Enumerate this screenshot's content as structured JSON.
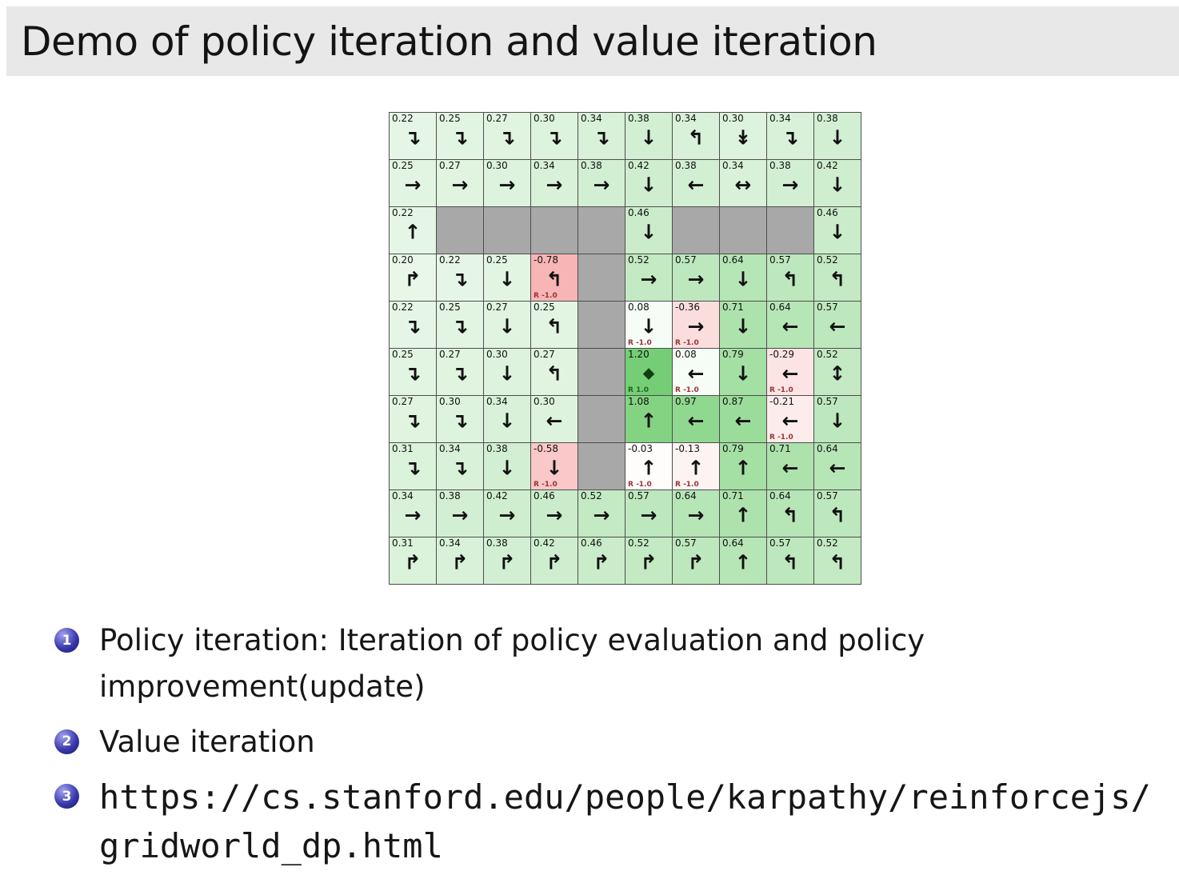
{
  "title": "Demo of policy iteration and value iteration",
  "colors": {
    "title_bar_bg": "#e8e8e8",
    "wall_gray": "#a8a8a8",
    "positive_value_green": "#00a500",
    "negative_value_red": "#eb1e1e",
    "reward_negative_text": "#993333",
    "reward_positive_text": "#1a6b1a",
    "enumerate_badge_blue": "#3a3aae"
  },
  "grid": {
    "rows": 10,
    "cols": 10,
    "legend": "gridworld value-function / policy visualization; v = state value, a = greedy policy arrow, r = reward label, w = wall, g = goal",
    "cells": [
      [
        {
          "v": "0.22",
          "a": "↴"
        },
        {
          "v": "0.25",
          "a": "↴"
        },
        {
          "v": "0.27",
          "a": "↴"
        },
        {
          "v": "0.30",
          "a": "↴"
        },
        {
          "v": "0.34",
          "a": "↴"
        },
        {
          "v": "0.38",
          "a": "↓"
        },
        {
          "v": "0.34",
          "a": "↰"
        },
        {
          "v": "0.30",
          "a": "↡"
        },
        {
          "v": "0.34",
          "a": "↴"
        },
        {
          "v": "0.38",
          "a": "↓"
        }
      ],
      [
        {
          "v": "0.25",
          "a": "→"
        },
        {
          "v": "0.27",
          "a": "→"
        },
        {
          "v": "0.30",
          "a": "→"
        },
        {
          "v": "0.34",
          "a": "→"
        },
        {
          "v": "0.38",
          "a": "→"
        },
        {
          "v": "0.42",
          "a": "↓"
        },
        {
          "v": "0.38",
          "a": "←"
        },
        {
          "v": "0.34",
          "a": "↔"
        },
        {
          "v": "0.38",
          "a": "→"
        },
        {
          "v": "0.42",
          "a": "↓"
        }
      ],
      [
        {
          "v": "0.22",
          "a": "↑"
        },
        {
          "w": 1
        },
        {
          "w": 1
        },
        {
          "w": 1
        },
        {
          "w": 1
        },
        {
          "v": "0.46",
          "a": "↓"
        },
        {
          "w": 1
        },
        {
          "w": 1
        },
        {
          "w": 1
        },
        {
          "v": "0.46",
          "a": "↓"
        }
      ],
      [
        {
          "v": "0.20",
          "a": "↱"
        },
        {
          "v": "0.22",
          "a": "↴"
        },
        {
          "v": "0.25",
          "a": "↓"
        },
        {
          "v": "-0.78",
          "a": "↰",
          "r": "R -1.0"
        },
        {
          "w": 1
        },
        {
          "v": "0.52",
          "a": "→"
        },
        {
          "v": "0.57",
          "a": "→"
        },
        {
          "v": "0.64",
          "a": "↓"
        },
        {
          "v": "0.57",
          "a": "↰"
        },
        {
          "v": "0.52",
          "a": "↰"
        }
      ],
      [
        {
          "v": "0.22",
          "a": "↴"
        },
        {
          "v": "0.25",
          "a": "↴"
        },
        {
          "v": "0.27",
          "a": "↓"
        },
        {
          "v": "0.25",
          "a": "↰"
        },
        {
          "w": 1
        },
        {
          "v": "0.08",
          "a": "↓",
          "r": "R -1.0"
        },
        {
          "v": "-0.36",
          "a": "→",
          "r": "R -1.0"
        },
        {
          "v": "0.71",
          "a": "↓"
        },
        {
          "v": "0.64",
          "a": "←"
        },
        {
          "v": "0.57",
          "a": "←"
        }
      ],
      [
        {
          "v": "0.25",
          "a": "↴"
        },
        {
          "v": "0.27",
          "a": "↴"
        },
        {
          "v": "0.30",
          "a": "↓"
        },
        {
          "v": "0.27",
          "a": "↰"
        },
        {
          "w": 1
        },
        {
          "v": "1.20",
          "a": "◆",
          "r": "R 1.0",
          "g": 1
        },
        {
          "v": "0.08",
          "a": "←",
          "r": "R -1.0"
        },
        {
          "v": "0.79",
          "a": "↓"
        },
        {
          "v": "-0.29",
          "a": "←",
          "r": "R -1.0"
        },
        {
          "v": "0.52",
          "a": "↕"
        }
      ],
      [
        {
          "v": "0.27",
          "a": "↴"
        },
        {
          "v": "0.30",
          "a": "↴"
        },
        {
          "v": "0.34",
          "a": "↓"
        },
        {
          "v": "0.30",
          "a": "←"
        },
        {
          "w": 1
        },
        {
          "v": "1.08",
          "a": "↑"
        },
        {
          "v": "0.97",
          "a": "←"
        },
        {
          "v": "0.87",
          "a": "←"
        },
        {
          "v": "-0.21",
          "a": "←",
          "r": "R -1.0"
        },
        {
          "v": "0.57",
          "a": "↓"
        }
      ],
      [
        {
          "v": "0.31",
          "a": "↴"
        },
        {
          "v": "0.34",
          "a": "↴"
        },
        {
          "v": "0.38",
          "a": "↓"
        },
        {
          "v": "-0.58",
          "a": "↓",
          "r": "R -1.0"
        },
        {
          "w": 1
        },
        {
          "v": "-0.03",
          "a": "↑",
          "r": "R -1.0"
        },
        {
          "v": "-0.13",
          "a": "↑",
          "r": "R -1.0"
        },
        {
          "v": "0.79",
          "a": "↑"
        },
        {
          "v": "0.71",
          "a": "←"
        },
        {
          "v": "0.64",
          "a": "←"
        }
      ],
      [
        {
          "v": "0.34",
          "a": "→"
        },
        {
          "v": "0.38",
          "a": "→"
        },
        {
          "v": "0.42",
          "a": "→"
        },
        {
          "v": "0.46",
          "a": "→"
        },
        {
          "v": "0.52",
          "a": "→"
        },
        {
          "v": "0.57",
          "a": "→"
        },
        {
          "v": "0.64",
          "a": "→"
        },
        {
          "v": "0.71",
          "a": "↑"
        },
        {
          "v": "0.64",
          "a": "↰"
        },
        {
          "v": "0.57",
          "a": "↰"
        }
      ],
      [
        {
          "v": "0.31",
          "a": "↱"
        },
        {
          "v": "0.34",
          "a": "↱"
        },
        {
          "v": "0.38",
          "a": "↱"
        },
        {
          "v": "0.42",
          "a": "↱"
        },
        {
          "v": "0.46",
          "a": "↱"
        },
        {
          "v": "0.52",
          "a": "↱"
        },
        {
          "v": "0.57",
          "a": "↱"
        },
        {
          "v": "0.64",
          "a": "↑"
        },
        {
          "v": "0.57",
          "a": "↰"
        },
        {
          "v": "0.52",
          "a": "↰"
        }
      ]
    ]
  },
  "list": {
    "items": [
      {
        "number": "1",
        "text": "Policy iteration: Iteration of policy evaluation and policy improvement(update)"
      },
      {
        "number": "2",
        "text": "Value iteration"
      },
      {
        "number": "3",
        "lines": [
          "https://cs.stanford.edu/people/karpathy/reinforcejs/",
          "gridworld_dp.html"
        ]
      }
    ]
  }
}
